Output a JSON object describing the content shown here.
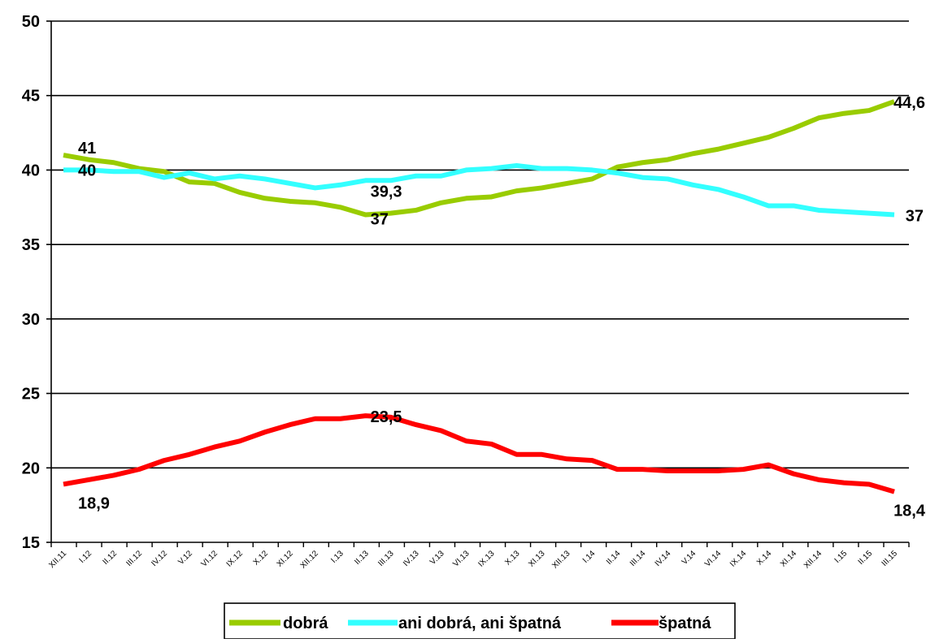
{
  "chart_data": {
    "type": "line",
    "title": "",
    "xlabel": "",
    "ylabel": "",
    "ylim": [
      15,
      50
    ],
    "yticks": [
      15,
      20,
      25,
      30,
      35,
      40,
      45,
      50
    ],
    "grid": "horizontal",
    "legend_position": "bottom",
    "categories": [
      "XII.11",
      "I.12",
      "II.12",
      "III.12",
      "IV.12",
      "V.12",
      "VI.12",
      "IX.12",
      "X.12",
      "XI.12",
      "XII.12",
      "I.13",
      "II.13",
      "III.13",
      "IV.13",
      "V.13",
      "VI.13",
      "IX.13",
      "X.13",
      "XI.13",
      "XII.13",
      "I.14",
      "II.14",
      "III.14",
      "IV.14",
      "V.14",
      "VI.14",
      "IX.14",
      "X.14",
      "XI.14",
      "XII.14",
      "I.15",
      "II.15",
      "III.15"
    ],
    "series": [
      {
        "name": "dobrá",
        "color": "#99CC00",
        "values": [
          41,
          40.7,
          40.5,
          40.1,
          39.9,
          39.2,
          39.1,
          38.5,
          38.1,
          37.9,
          37.8,
          37.5,
          37,
          37.1,
          37.3,
          37.8,
          38.1,
          38.2,
          38.6,
          38.8,
          39.1,
          39.4,
          40.2,
          40.5,
          40.7,
          41.1,
          41.4,
          41.8,
          42.2,
          42.8,
          43.5,
          43.8,
          44,
          44.6
        ]
      },
      {
        "name": "ani dobrá, ani špatná",
        "color": "#33FFFF",
        "values": [
          40,
          40,
          39.9,
          39.9,
          39.5,
          39.8,
          39.4,
          39.6,
          39.4,
          39.1,
          38.8,
          39,
          39.3,
          39.3,
          39.6,
          39.6,
          40,
          40.1,
          40.3,
          40.1,
          40.1,
          40,
          39.8,
          39.5,
          39.4,
          39,
          38.7,
          38.2,
          37.6,
          37.6,
          37.3,
          37.2,
          37.1,
          37
        ]
      },
      {
        "name": "špatná",
        "color": "#FF0000",
        "values": [
          18.9,
          19.2,
          19.5,
          19.9,
          20.5,
          20.9,
          21.4,
          21.8,
          22.4,
          22.9,
          23.3,
          23.3,
          23.5,
          23.4,
          22.9,
          22.5,
          21.8,
          21.6,
          20.9,
          20.9,
          20.6,
          20.5,
          19.9,
          19.9,
          19.8,
          19.8,
          19.8,
          19.9,
          20.2,
          19.6,
          19.2,
          19,
          18.9,
          18.4
        ]
      }
    ],
    "annotations": [
      {
        "series": 0,
        "index": 0,
        "text": "41"
      },
      {
        "series": 0,
        "index": 12,
        "text": "37"
      },
      {
        "series": 0,
        "index": 33,
        "text": "44,6"
      },
      {
        "series": 1,
        "index": 0,
        "text": "40"
      },
      {
        "series": 1,
        "index": 12,
        "text": "39,3"
      },
      {
        "series": 1,
        "index": 33,
        "text": "37"
      },
      {
        "series": 2,
        "index": 0,
        "text": "18,9"
      },
      {
        "series": 2,
        "index": 12,
        "text": "23,5"
      },
      {
        "series": 2,
        "index": 33,
        "text": "18,4"
      }
    ]
  }
}
